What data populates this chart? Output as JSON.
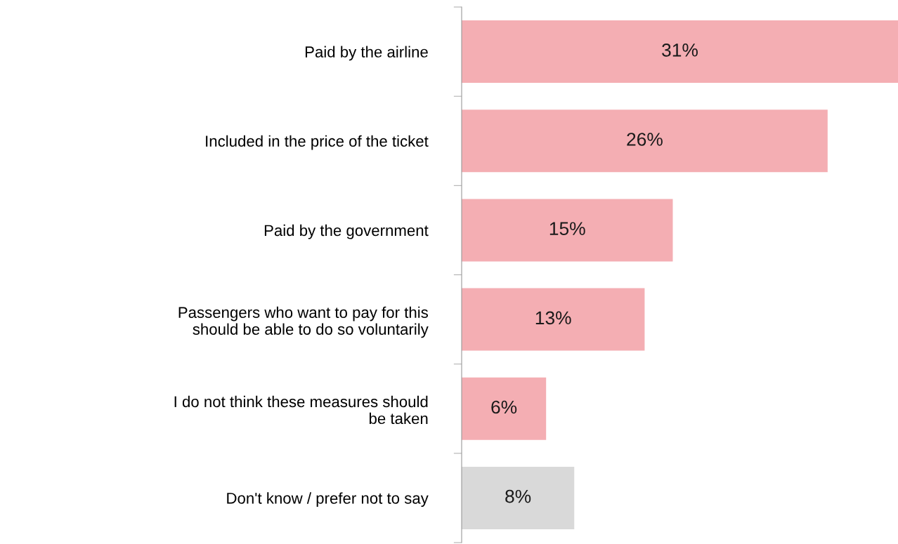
{
  "chart_data": {
    "type": "bar",
    "orientation": "horizontal",
    "categories": [
      "Paid by the airline",
      "Included in the price of the ticket",
      "Paid by the government",
      "Passengers who want to pay for this\nshould be able to do so voluntarily",
      "I do not think these measures should\nbe taken",
      "Don't know / prefer not to say"
    ],
    "values": [
      31,
      26,
      15,
      13,
      6,
      8
    ],
    "colors": [
      "#f4aeb3",
      "#f4aeb3",
      "#f4aeb3",
      "#f4aeb3",
      "#f4aeb3",
      "#d9d9d9"
    ],
    "value_labels": [
      "31%",
      "26%",
      "15%",
      "13%",
      "6%",
      "8%"
    ],
    "grid": false,
    "legend": false
  }
}
